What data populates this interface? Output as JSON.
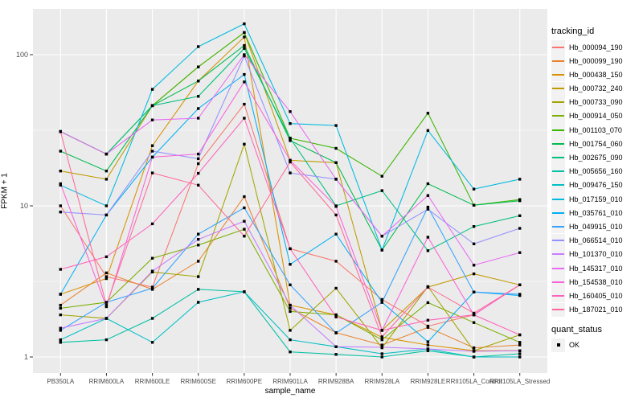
{
  "chart_data": {
    "type": "line",
    "title": "",
    "xlabel": "sample_name",
    "ylabel": "FPKM + 1",
    "y_scale": "log10",
    "y_ticks": [
      1,
      10,
      100
    ],
    "y_tick_labels": [
      "1",
      "10",
      "100"
    ],
    "y_minor_ticks": [
      3.1623,
      31.623
    ],
    "ylim": [
      0.78,
      200
    ],
    "grid": "on",
    "legend_position": "right",
    "panel_bg": "#EBEBEB",
    "grid_color": "#FFFFFF",
    "point_marker": {
      "shape": "square",
      "color": "#000000",
      "meaning": "quant_status OK"
    },
    "categories": [
      "PB350LA",
      "RRIM600LA",
      "RRIM600LE",
      "RRIM600SE",
      "RRIM600PE",
      "RRIM901LA",
      "RRIM928BA",
      "RRIM928LA",
      "RRIM928LE",
      "RRII105LA_Control",
      "RRII105LA_Stressed"
    ],
    "series": [
      {
        "name": "Hb_000094_190",
        "color": "#F8766D",
        "values": [
          10,
          3.4,
          2.9,
          19,
          47,
          5.2,
          4.3,
          2.4,
          1.6,
          1.9,
          3.0
        ]
      },
      {
        "name": "Hb_000099_190",
        "color": "#EA8331",
        "values": [
          2.2,
          3.6,
          2.8,
          4.3,
          11.5,
          2.1,
          1.45,
          1.2,
          1.57,
          1.15,
          1.2
        ]
      },
      {
        "name": "Hb_000438_150",
        "color": "#D89000",
        "values": [
          2.6,
          3.3,
          25,
          67,
          131,
          2.2,
          1.9,
          1.35,
          1.2,
          1.1,
          1.1
        ]
      },
      {
        "name": "Hb_000732_240",
        "color": "#C09B00",
        "values": [
          17,
          15,
          46,
          83,
          140,
          20,
          19.3,
          1.5,
          2.9,
          3.55,
          3.0
        ]
      },
      {
        "name": "Hb_000733_090",
        "color": "#A3A500",
        "values": [
          1.9,
          1.8,
          3.65,
          3.4,
          25.6,
          1.5,
          2.85,
          1.15,
          2.92,
          1.1,
          1.4
        ]
      },
      {
        "name": "Hb_000914_050",
        "color": "#7CAE00",
        "values": [
          2.1,
          2.3,
          4.5,
          5.5,
          7.0,
          2.0,
          1.9,
          1.3,
          2.29,
          1.69,
          1.25
        ]
      },
      {
        "name": "Hb_001103_070",
        "color": "#39B600",
        "values": [
          31,
          22,
          46,
          83,
          140,
          28,
          24,
          15.7,
          41,
          10.1,
          11
        ]
      },
      {
        "name": "Hb_001754_060",
        "color": "#00BB4E",
        "values": [
          23,
          17,
          46,
          67,
          115,
          27,
          19.3,
          5.1,
          14,
          10.1,
          10.8
        ]
      },
      {
        "name": "Hb_002675_090",
        "color": "#00BF7D",
        "values": [
          31,
          22,
          46,
          53,
          110,
          28,
          10,
          12.6,
          5.05,
          7.3,
          8.6
        ]
      },
      {
        "name": "Hb_005656_160",
        "color": "#00C1A3",
        "values": [
          1.25,
          1.3,
          1.8,
          2.8,
          2.7,
          1.08,
          1.04,
          1.0,
          1.1,
          1.0,
          1.05
        ]
      },
      {
        "name": "Hb_009476_150",
        "color": "#00BFC4",
        "values": [
          1.3,
          1.8,
          1.25,
          2.3,
          2.7,
          1.3,
          1.17,
          1.05,
          1.13,
          1.0,
          1.0
        ]
      },
      {
        "name": "Hb_017159_010",
        "color": "#00BAE0",
        "values": [
          13.7,
          10,
          59,
          113,
          160,
          35,
          34,
          5.1,
          31.5,
          12.9,
          15
        ]
      },
      {
        "name": "Hb_035761_010",
        "color": "#00B0F6",
        "values": [
          2.6,
          8.7,
          21,
          44,
          74,
          4.1,
          6.5,
          2.3,
          1.26,
          2.69,
          2.55
        ]
      },
      {
        "name": "Hb_049915_010",
        "color": "#35A2FF",
        "values": [
          1.5,
          2.3,
          2.85,
          6.5,
          9.7,
          3.0,
          1.44,
          2.3,
          9.8,
          2.69,
          2.6
        ]
      },
      {
        "name": "Hb_066514_010",
        "color": "#9590FF",
        "values": [
          9.1,
          8.7,
          23,
          20.5,
          98,
          16.5,
          15,
          6.3,
          9.5,
          5.6,
          7.1
        ]
      },
      {
        "name": "Hb_101370_010",
        "color": "#C77CFF",
        "values": [
          1.55,
          1.8,
          3.7,
          6.0,
          7.9,
          2.2,
          1.17,
          1.16,
          1.13,
          1.09,
          1.1
        ]
      },
      {
        "name": "Hb_145317_010",
        "color": "#E76BF3",
        "values": [
          31,
          22,
          37,
          38,
          100,
          42,
          15,
          6.3,
          11.7,
          4.05,
          4.9
        ]
      },
      {
        "name": "Hb_154538_010",
        "color": "#FA62DB",
        "values": [
          14,
          2.15,
          21,
          22,
          66,
          20,
          9.9,
          1.5,
          6.2,
          1.9,
          3.0
        ]
      },
      {
        "name": "Hb_160405_010",
        "color": "#FF62BC",
        "values": [
          3.8,
          4.6,
          7.6,
          16.4,
          38,
          5.2,
          1.84,
          1.5,
          1.75,
          1.9,
          1.4
        ]
      },
      {
        "name": "Hb_187021_010",
        "color": "#FF6A98",
        "values": [
          31,
          2.2,
          16.5,
          13.7,
          6.3,
          19.5,
          8.7,
          1.36,
          2.9,
          1.95,
          3.0
        ]
      }
    ]
  },
  "legend": {
    "tracking_title": "tracking_id",
    "quant_title": "quant_status",
    "quant_items": [
      "OK"
    ]
  }
}
